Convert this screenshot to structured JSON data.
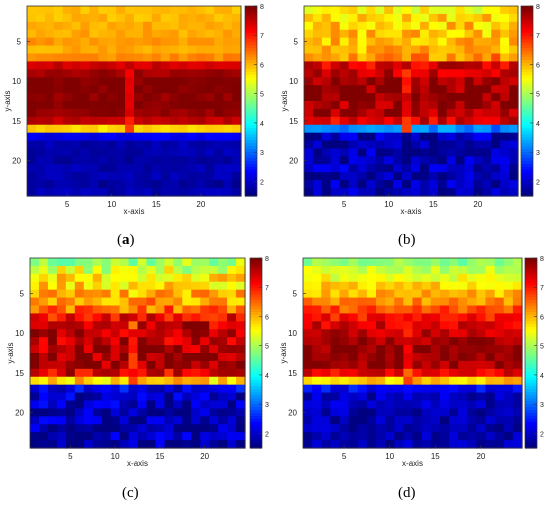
{
  "chart_data": [
    {
      "type": "heatmap",
      "caption": "a",
      "xlabel": "x-axis",
      "ylabel": "y-axis",
      "x_range": [
        1,
        24
      ],
      "y_range": [
        1,
        24
      ],
      "xticks": [
        "5",
        "10",
        "15",
        "20"
      ],
      "yticks": [
        "5",
        "10",
        "15",
        "20"
      ],
      "colorbar_ticks": [
        "2",
        "3",
        "4",
        "5",
        "6",
        "7",
        "8"
      ],
      "value_range": [
        1.5,
        8
      ],
      "colormap": "jet",
      "row_profile": [
        6.0,
        6.0,
        6.1,
        6.1,
        6.2,
        6.1,
        6.3,
        7.5,
        7.8,
        8.0,
        8.0,
        7.9,
        8.0,
        7.9,
        7.6,
        5.8,
        2.2,
        1.8,
        1.8,
        1.7,
        1.8,
        1.8,
        1.7,
        1.8
      ],
      "variation": 0.15
    },
    {
      "type": "heatmap",
      "caption": "b",
      "xlabel": "x-axis",
      "ylabel": "y-axis",
      "x_range": [
        1,
        24
      ],
      "y_range": [
        1,
        24
      ],
      "xticks": [
        "5",
        "10",
        "15",
        "20"
      ],
      "yticks": [
        "5",
        "10",
        "15",
        "20"
      ],
      "colorbar_ticks": [
        "2",
        "3",
        "4",
        "5",
        "6",
        "7",
        "8"
      ],
      "value_range": [
        1.5,
        8
      ],
      "colormap": "jet",
      "row_profile": [
        5.6,
        5.8,
        5.9,
        5.9,
        6.0,
        6.0,
        6.3,
        7.4,
        7.6,
        7.9,
        7.9,
        8.0,
        7.8,
        7.8,
        7.4,
        3.2,
        1.9,
        1.8,
        1.8,
        1.8,
        1.9,
        1.8,
        1.8,
        1.8
      ],
      "variation": 0.45
    },
    {
      "type": "heatmap",
      "caption": "c",
      "xlabel": "x-axis",
      "ylabel": "y-axis",
      "x_range": [
        1,
        24
      ],
      "y_range": [
        1,
        24
      ],
      "xticks": [
        "5",
        "10",
        "15",
        "20"
      ],
      "yticks": [
        "5",
        "10",
        "15",
        "20"
      ],
      "colorbar_ticks": [
        "2",
        "3",
        "4",
        "5",
        "6",
        "7",
        "8"
      ],
      "value_range": [
        1.5,
        8
      ],
      "colormap": "jet",
      "row_profile": [
        5.0,
        5.3,
        5.7,
        5.8,
        6.0,
        6.2,
        6.5,
        7.2,
        7.5,
        7.6,
        7.6,
        7.7,
        7.8,
        7.8,
        7.4,
        5.8,
        2.1,
        1.9,
        1.9,
        1.8,
        1.9,
        1.8,
        1.8,
        1.8
      ],
      "variation": 0.55
    },
    {
      "type": "heatmap",
      "caption": "d",
      "xlabel": "x-axis",
      "ylabel": "y-axis",
      "x_range": [
        1,
        24
      ],
      "y_range": [
        1,
        24
      ],
      "xticks": [
        "5",
        "10",
        "15",
        "20"
      ],
      "yticks": [
        "5",
        "10",
        "15",
        "20"
      ],
      "colorbar_ticks": [
        "2",
        "3",
        "4",
        "5",
        "6",
        "7",
        "8"
      ],
      "value_range": [
        1.5,
        8
      ],
      "colormap": "jet",
      "row_profile": [
        4.8,
        5.2,
        5.5,
        5.8,
        6.0,
        6.3,
        6.7,
        7.1,
        7.4,
        7.6,
        7.8,
        7.9,
        7.9,
        7.8,
        7.3,
        5.9,
        2.3,
        1.9,
        1.9,
        1.8,
        1.8,
        1.8,
        1.8,
        1.8
      ],
      "variation": 0.35
    }
  ]
}
